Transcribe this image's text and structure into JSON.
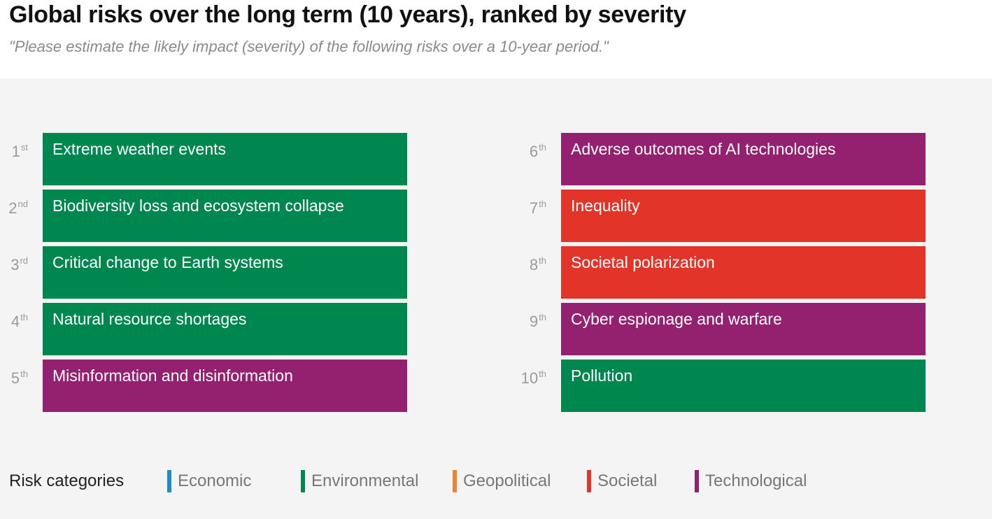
{
  "title": "Global risks over the long term (10 years), ranked by severity",
  "subtitle": "\"Please estimate the likely impact (severity) of the following risks over a 10-year period.\"",
  "colors": {
    "Economic": "#2389c8",
    "Environmental": "#00874f",
    "Geopolitical": "#ee842f",
    "Societal": "#e3342a",
    "Technological": "#93216f"
  },
  "legend": {
    "title": "Risk categories",
    "items": [
      {
        "label": "Economic",
        "category": "Economic"
      },
      {
        "label": "Environmental",
        "category": "Environmental"
      },
      {
        "label": "Geopolitical",
        "category": "Geopolitical"
      },
      {
        "label": "Societal",
        "category": "Societal"
      },
      {
        "label": "Technological",
        "category": "Technological"
      }
    ]
  },
  "chart_data": {
    "type": "table",
    "title": "Global risks over the long term (10 years), ranked by severity",
    "ranks": [
      {
        "rank": 1,
        "num": "1",
        "suffix": "st",
        "risk": "Extreme weather events",
        "category": "Environmental"
      },
      {
        "rank": 2,
        "num": "2",
        "suffix": "nd",
        "risk": "Biodiversity loss and ecosystem collapse",
        "category": "Environmental"
      },
      {
        "rank": 3,
        "num": "3",
        "suffix": "rd",
        "risk": "Critical change to Earth systems",
        "category": "Environmental"
      },
      {
        "rank": 4,
        "num": "4",
        "suffix": "th",
        "risk": "Natural resource shortages",
        "category": "Environmental"
      },
      {
        "rank": 5,
        "num": "5",
        "suffix": "th",
        "risk": "Misinformation and disinformation",
        "category": "Technological"
      },
      {
        "rank": 6,
        "num": "6",
        "suffix": "th",
        "risk": "Adverse outcomes of AI technologies",
        "category": "Technological"
      },
      {
        "rank": 7,
        "num": "7",
        "suffix": "th",
        "risk": "Inequality",
        "category": "Societal"
      },
      {
        "rank": 8,
        "num": "8",
        "suffix": "th",
        "risk": "Societal polarization",
        "category": "Societal"
      },
      {
        "rank": 9,
        "num": "9",
        "suffix": "th",
        "risk": "Cyber espionage and warfare",
        "category": "Technological"
      },
      {
        "rank": 10,
        "num": "10",
        "suffix": "th",
        "risk": "Pollution",
        "category": "Environmental"
      }
    ]
  }
}
